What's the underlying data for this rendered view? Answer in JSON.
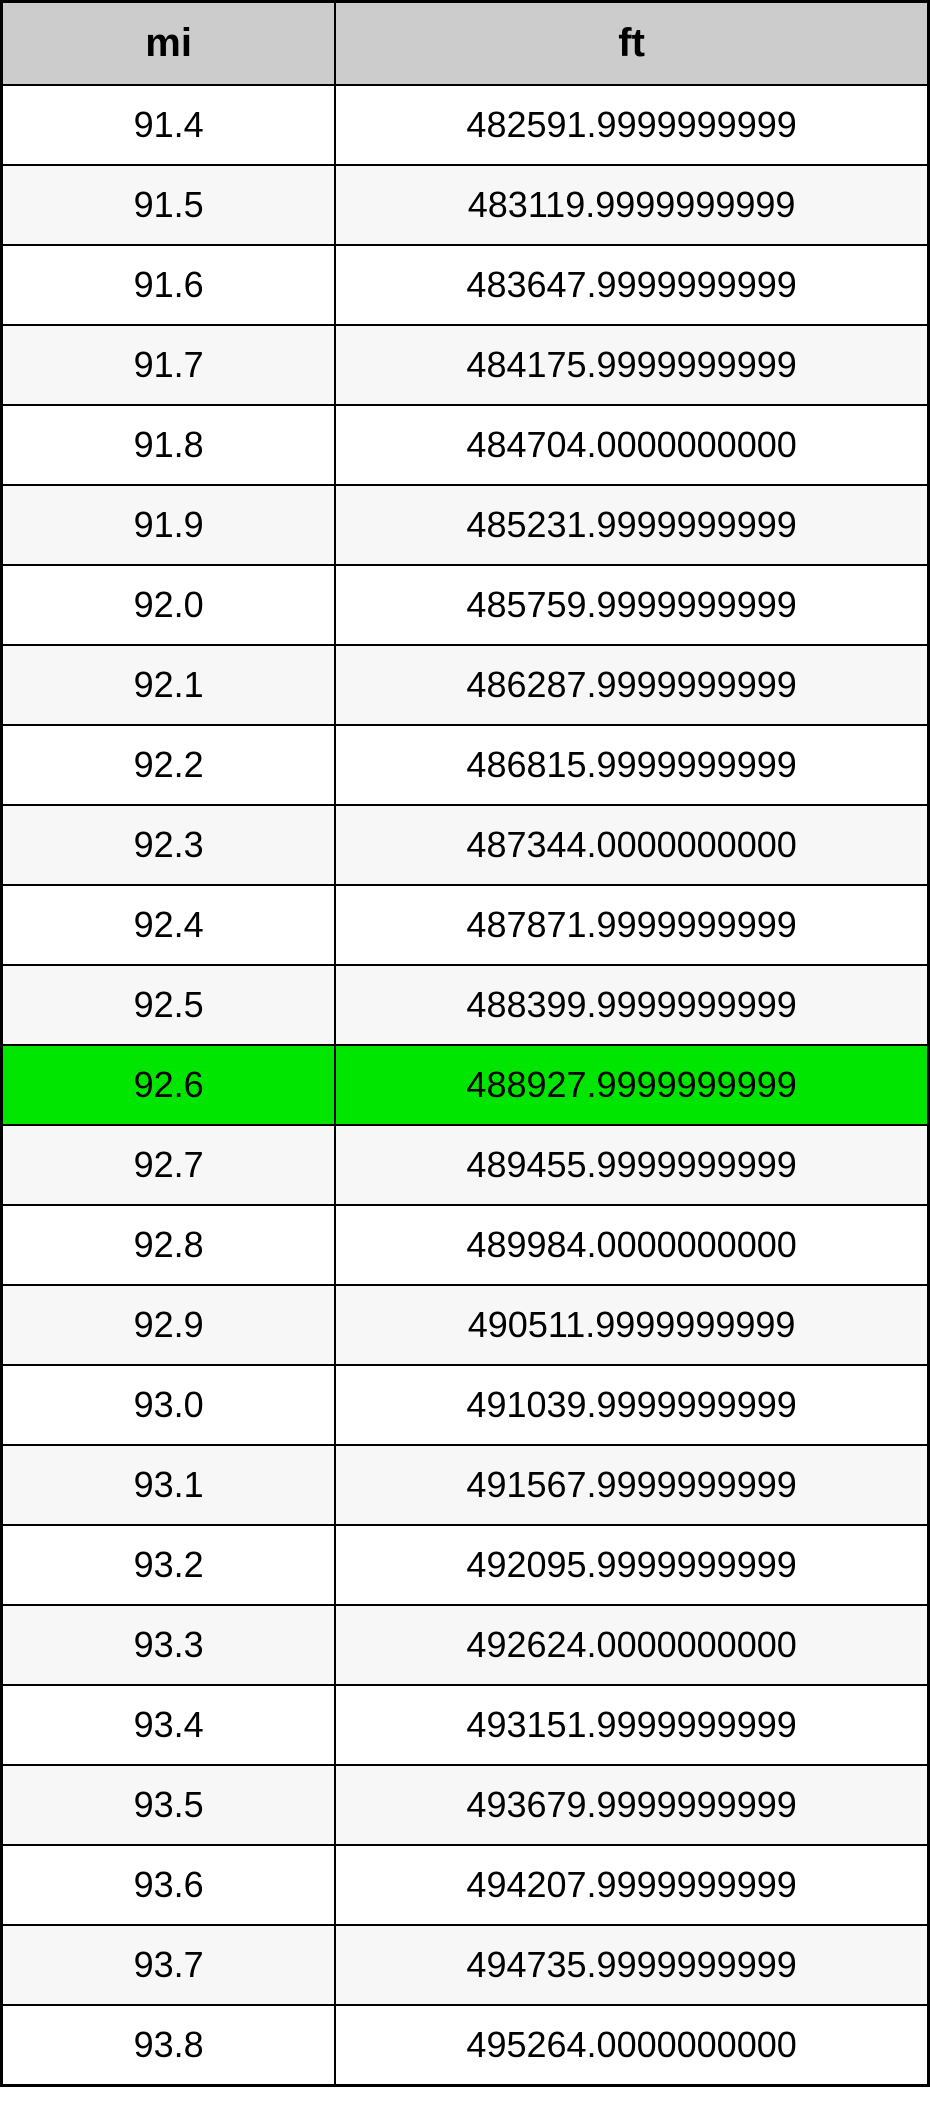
{
  "table": {
    "type": "table",
    "columns": [
      {
        "label": "mi",
        "width_pct": 36,
        "align": "center"
      },
      {
        "label": "ft",
        "width_pct": 64,
        "align": "center"
      }
    ],
    "header_bg": "#cccccc",
    "header_fontsize": 40,
    "header_fontweight": "bold",
    "cell_fontsize": 36,
    "border_color": "#000000",
    "outer_border_width": 3,
    "inner_border_width": 2,
    "row_bg_odd": "#ffffff",
    "row_bg_even": "#f7f7f7",
    "highlight_bg": "#00e600",
    "highlight_row_index": 12,
    "rows": [
      {
        "mi": "91.4",
        "ft": "482591.9999999999"
      },
      {
        "mi": "91.5",
        "ft": "483119.9999999999"
      },
      {
        "mi": "91.6",
        "ft": "483647.9999999999"
      },
      {
        "mi": "91.7",
        "ft": "484175.9999999999"
      },
      {
        "mi": "91.8",
        "ft": "484704.0000000000"
      },
      {
        "mi": "91.9",
        "ft": "485231.9999999999"
      },
      {
        "mi": "92.0",
        "ft": "485759.9999999999"
      },
      {
        "mi": "92.1",
        "ft": "486287.9999999999"
      },
      {
        "mi": "92.2",
        "ft": "486815.9999999999"
      },
      {
        "mi": "92.3",
        "ft": "487344.0000000000"
      },
      {
        "mi": "92.4",
        "ft": "487871.9999999999"
      },
      {
        "mi": "92.5",
        "ft": "488399.9999999999"
      },
      {
        "mi": "92.6",
        "ft": "488927.9999999999"
      },
      {
        "mi": "92.7",
        "ft": "489455.9999999999"
      },
      {
        "mi": "92.8",
        "ft": "489984.0000000000"
      },
      {
        "mi": "92.9",
        "ft": "490511.9999999999"
      },
      {
        "mi": "93.0",
        "ft": "491039.9999999999"
      },
      {
        "mi": "93.1",
        "ft": "491567.9999999999"
      },
      {
        "mi": "93.2",
        "ft": "492095.9999999999"
      },
      {
        "mi": "93.3",
        "ft": "492624.0000000000"
      },
      {
        "mi": "93.4",
        "ft": "493151.9999999999"
      },
      {
        "mi": "93.5",
        "ft": "493679.9999999999"
      },
      {
        "mi": "93.6",
        "ft": "494207.9999999999"
      },
      {
        "mi": "93.7",
        "ft": "494735.9999999999"
      },
      {
        "mi": "93.8",
        "ft": "495264.0000000000"
      }
    ]
  }
}
